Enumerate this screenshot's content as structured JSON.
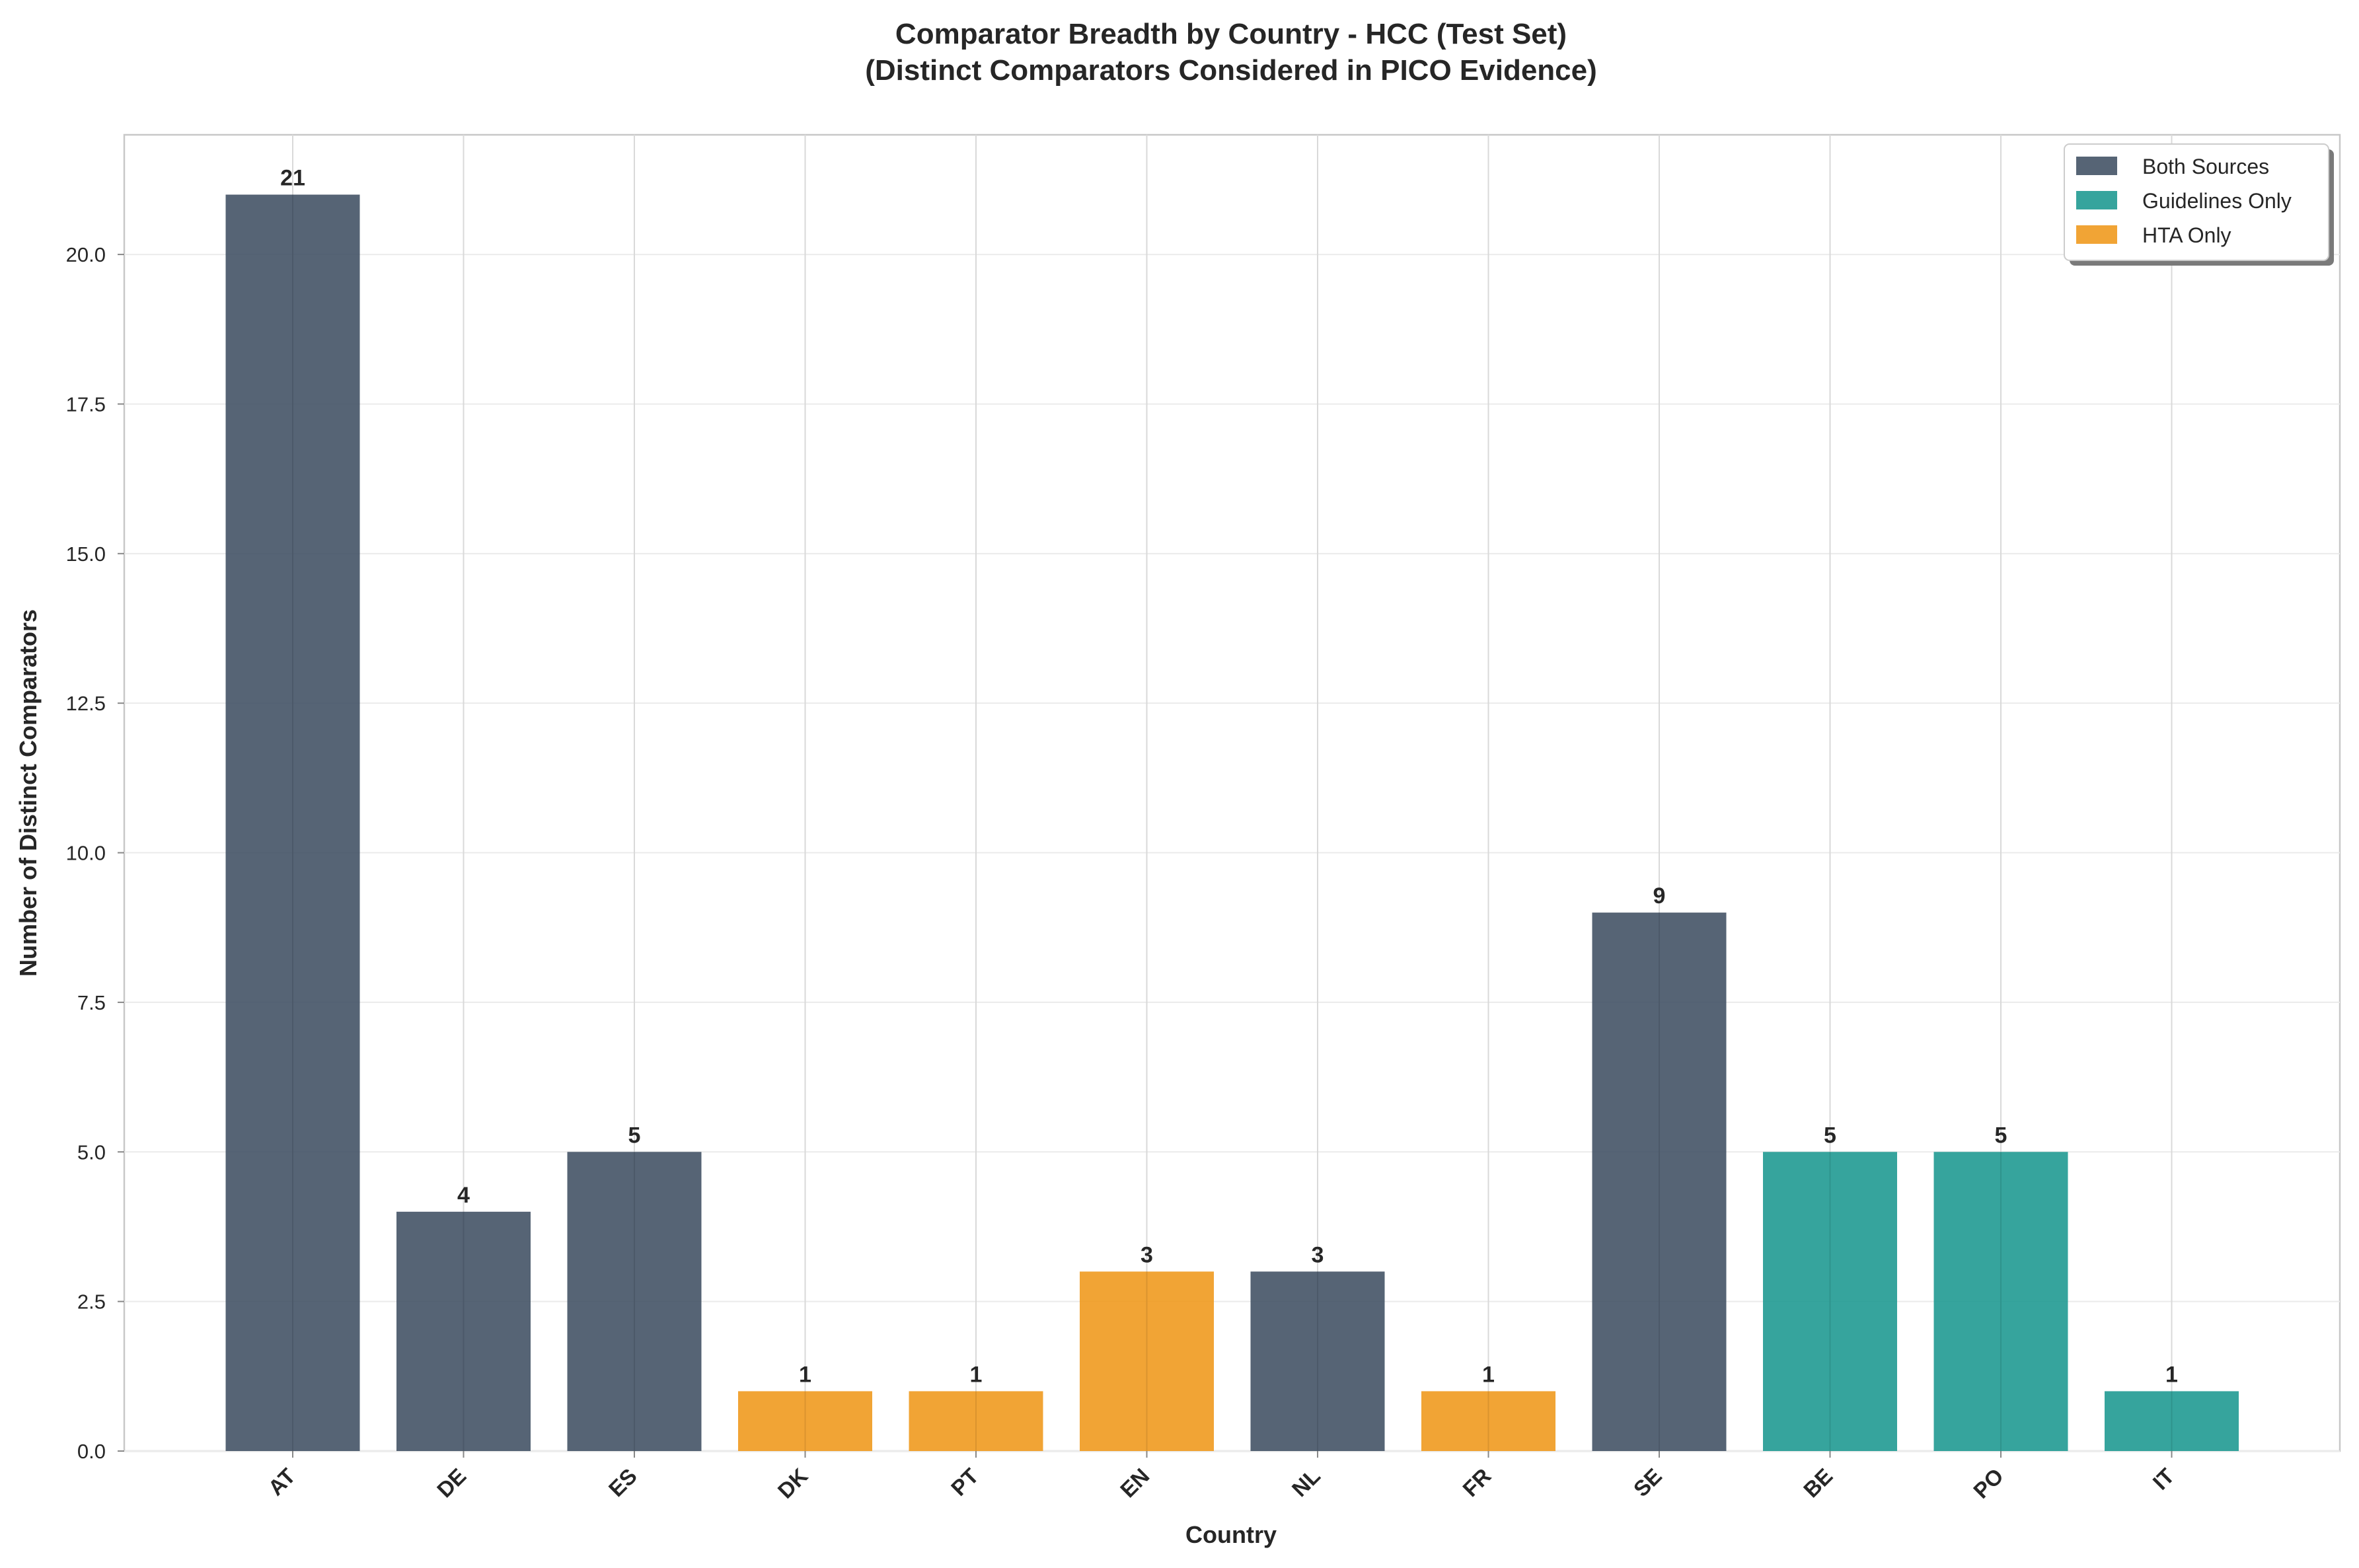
{
  "chart_data": {
    "type": "bar",
    "title": "Comparator Breadth by Country - HCC (Test Set)",
    "subtitle": "(Distinct Comparators Considered in PICO Evidence)",
    "xlabel": "Country",
    "ylabel": "Number of Distinct Comparators",
    "ylim": [
      0,
      22
    ],
    "yticks": [
      "0.0",
      "2.5",
      "5.0",
      "7.5",
      "10.0",
      "12.5",
      "15.0",
      "17.5",
      "20.0"
    ],
    "grid": true,
    "legend_position": "top-right",
    "categories": [
      "AT",
      "DE",
      "ES",
      "DK",
      "PT",
      "EN",
      "NL",
      "FR",
      "SE",
      "BE",
      "PO",
      "IT"
    ],
    "values": [
      21,
      4,
      5,
      1,
      1,
      3,
      3,
      1,
      9,
      5,
      5,
      1
    ],
    "value_labels": [
      "21",
      "4",
      "5",
      "1",
      "1",
      "3",
      "3",
      "1",
      "9",
      "5",
      "5",
      "1"
    ],
    "groups": [
      "Both Sources",
      "Both Sources",
      "Both Sources",
      "HTA Only",
      "HTA Only",
      "HTA Only",
      "Both Sources",
      "HTA Only",
      "Both Sources",
      "Guidelines Only",
      "Guidelines Only",
      "Guidelines Only"
    ],
    "legend": [
      {
        "name": "Both Sources",
        "color": "#445366"
      },
      {
        "name": "Guidelines Only",
        "color": "#209a92"
      },
      {
        "name": "HTA Only",
        "color": "#f09a1f"
      }
    ]
  }
}
